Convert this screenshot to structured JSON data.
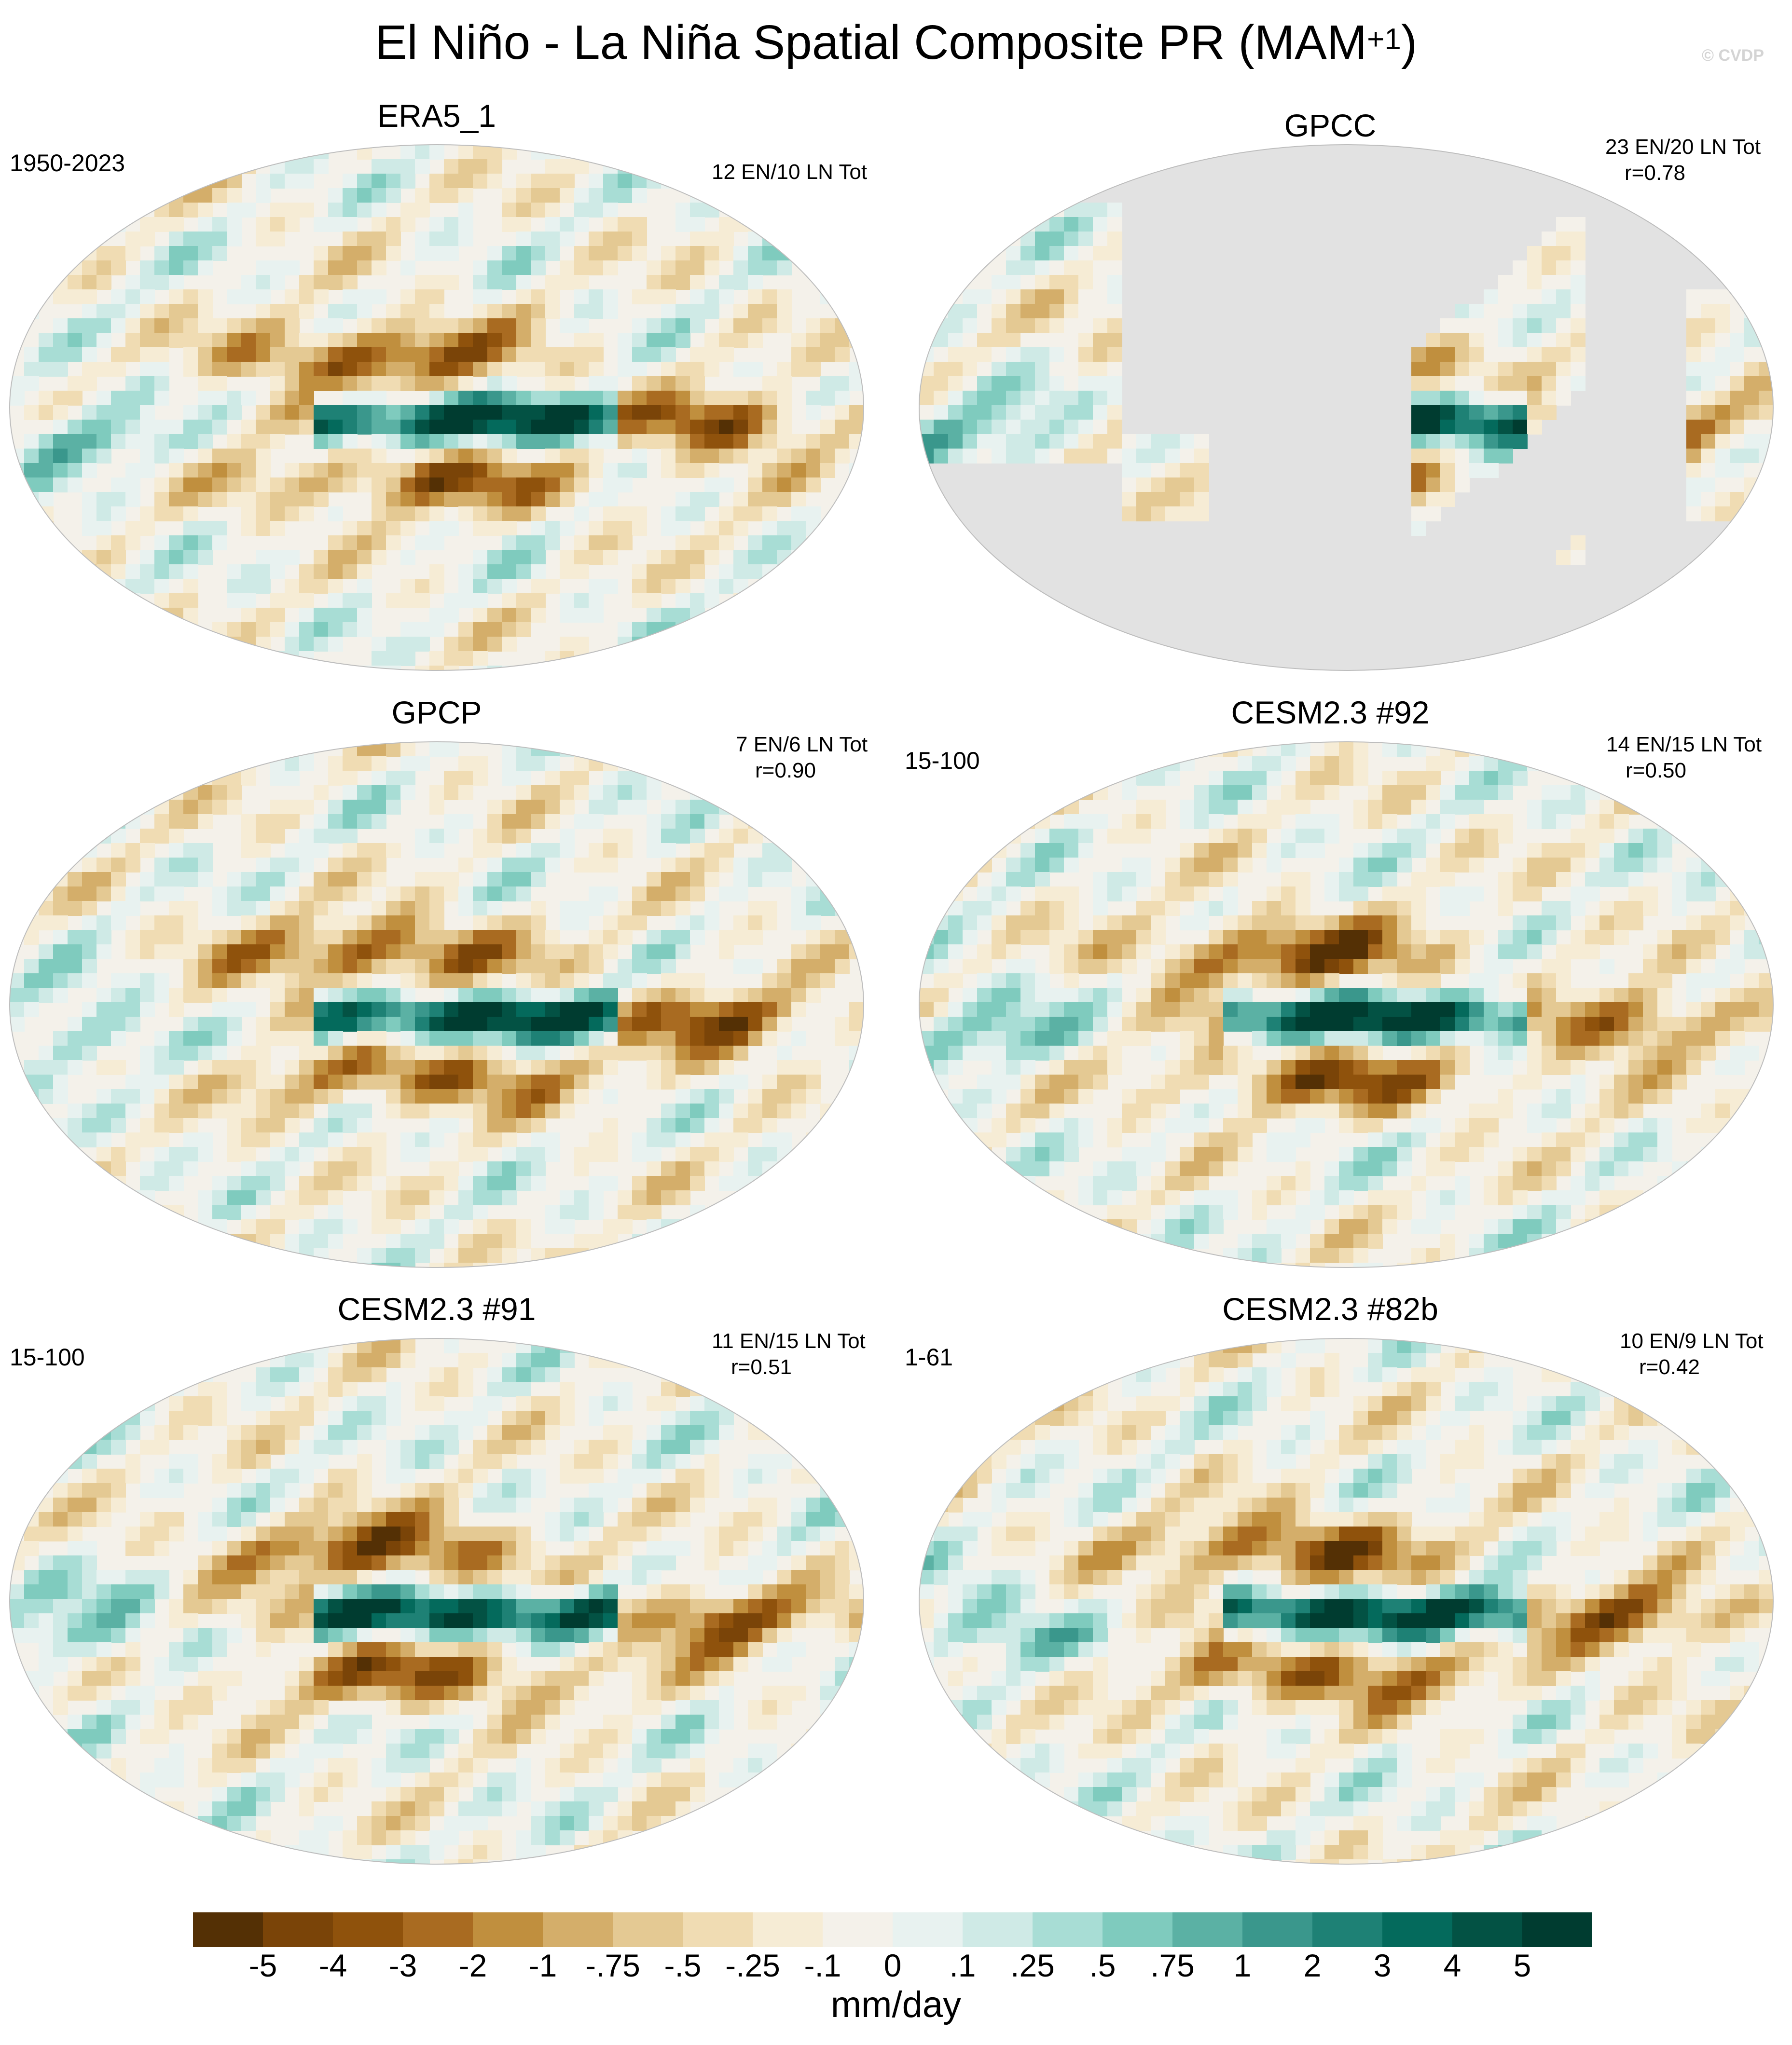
{
  "figure": {
    "title_main": "El Niño - La Niña Spatial Composite PR (MAM",
    "title_sup": "+1",
    "title_end": ")",
    "credit": "© CVDP"
  },
  "panels": [
    {
      "name": "ERA5_1",
      "period": "1950-2023",
      "stats_line1": "12 EN/10 LN Tot",
      "stats_line2": "",
      "land_only": false
    },
    {
      "name": "GPCC",
      "period": "",
      "stats_line1": "23 EN/20 LN Tot",
      "stats_line2": "r=0.78",
      "land_only": true
    },
    {
      "name": "GPCP",
      "period": "",
      "stats_line1": "7 EN/6 LN Tot",
      "stats_line2": "r=0.90",
      "land_only": false
    },
    {
      "name": "CESM2.3 #92",
      "period": "15-100",
      "stats_line1": "14 EN/15 LN Tot",
      "stats_line2": "r=0.50",
      "land_only": false
    },
    {
      "name": "CESM2.3 #91",
      "period": "15-100",
      "stats_line1": "11 EN/15 LN Tot",
      "stats_line2": "r=0.51",
      "land_only": false
    },
    {
      "name": "CESM2.3 #82b",
      "period": "1-61",
      "stats_line1": "10 EN/9 LN Tot",
      "stats_line2": "r=0.42",
      "land_only": false
    }
  ],
  "colorbar": {
    "labels": [
      "-5",
      "-4",
      "-3",
      "-2",
      "-1",
      "-.75",
      "-.5",
      "-.25",
      "-.1",
      "0",
      ".1",
      ".25",
      ".5",
      ".75",
      "1",
      "2",
      "3",
      "4",
      "5"
    ],
    "colors": [
      "#543005",
      "#7a4408",
      "#8f520c",
      "#a96b21",
      "#c08f3e",
      "#d4ae6a",
      "#e4c993",
      "#f0dcb3",
      "#f6ecd5",
      "#f4f1ea",
      "#e8f2f0",
      "#cfeae6",
      "#a8ddd5",
      "#7fcbbe",
      "#5bb1a4",
      "#3a978c",
      "#1e8175",
      "#046a5c",
      "#035244",
      "#003c30"
    ],
    "units": "mm/day"
  }
}
